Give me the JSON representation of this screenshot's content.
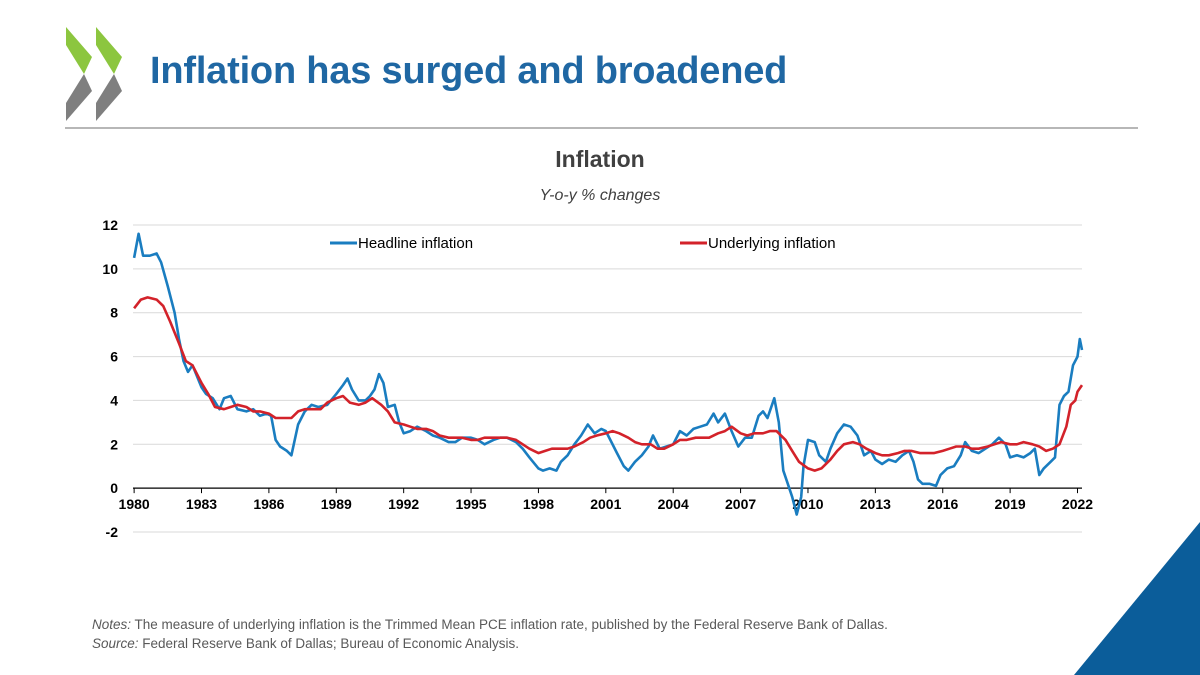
{
  "slide": {
    "title": "Inflation has surged and broadened",
    "brand_colors": {
      "logo_green": "#8cc63f",
      "logo_grey": "#7f7f7f",
      "title_blue": "#1f67a3",
      "corner_blue": "#0b5d9a"
    }
  },
  "notes": {
    "notes_label": "Notes:",
    "notes_text": " The measure of underlying inflation is the Trimmed Mean PCE inflation rate, published by the Federal Reserve Bank of Dallas.",
    "source_label": "Source:",
    "source_text": " Federal Reserve Bank of Dallas; Bureau of Economic Analysis."
  },
  "chart_data": {
    "type": "line",
    "title": "Inflation",
    "subtitle": "Y-o-y % changes",
    "xlabel": "",
    "ylabel": "",
    "xlim": [
      1979.95,
      2022.2
    ],
    "ylim": [
      -2,
      12
    ],
    "y_ticks": [
      -2,
      0,
      2,
      4,
      6,
      8,
      10,
      12
    ],
    "x_ticks": [
      1980,
      1983,
      1986,
      1989,
      1992,
      1995,
      1998,
      2001,
      2004,
      2007,
      2010,
      2013,
      2016,
      2019,
      2022
    ],
    "x_tick_labels": [
      "1980",
      "1983",
      "1986",
      "1989",
      "1992",
      "1995",
      "1998",
      "2001",
      "2004",
      "2007",
      "2010",
      "2013",
      "2016",
      "2019",
      "2022"
    ],
    "grid": "horizontal",
    "legend_position": "top",
    "series": [
      {
        "name": "Headline inflation",
        "color": "#1a7dc0",
        "points": [
          [
            1980.0,
            10.5
          ],
          [
            1980.2,
            11.6
          ],
          [
            1980.4,
            10.6
          ],
          [
            1980.7,
            10.6
          ],
          [
            1981.0,
            10.7
          ],
          [
            1981.2,
            10.3
          ],
          [
            1981.5,
            9.2
          ],
          [
            1981.8,
            8.0
          ],
          [
            1982.0,
            6.8
          ],
          [
            1982.2,
            5.8
          ],
          [
            1982.4,
            5.3
          ],
          [
            1982.6,
            5.6
          ],
          [
            1982.8,
            5.1
          ],
          [
            1983.0,
            4.6
          ],
          [
            1983.2,
            4.3
          ],
          [
            1983.5,
            4.1
          ],
          [
            1983.8,
            3.6
          ],
          [
            1984.0,
            4.1
          ],
          [
            1984.3,
            4.2
          ],
          [
            1984.6,
            3.6
          ],
          [
            1985.0,
            3.5
          ],
          [
            1985.3,
            3.6
          ],
          [
            1985.6,
            3.3
          ],
          [
            1985.9,
            3.4
          ],
          [
            1986.1,
            3.3
          ],
          [
            1986.3,
            2.2
          ],
          [
            1986.5,
            1.9
          ],
          [
            1986.8,
            1.7
          ],
          [
            1987.0,
            1.5
          ],
          [
            1987.3,
            2.9
          ],
          [
            1987.6,
            3.5
          ],
          [
            1987.9,
            3.8
          ],
          [
            1988.2,
            3.7
          ],
          [
            1988.6,
            3.8
          ],
          [
            1989.0,
            4.3
          ],
          [
            1989.3,
            4.7
          ],
          [
            1989.5,
            5.0
          ],
          [
            1989.7,
            4.5
          ],
          [
            1990.0,
            4.0
          ],
          [
            1990.3,
            4.0
          ],
          [
            1990.5,
            4.2
          ],
          [
            1990.7,
            4.5
          ],
          [
            1990.9,
            5.2
          ],
          [
            1991.1,
            4.8
          ],
          [
            1991.3,
            3.7
          ],
          [
            1991.6,
            3.8
          ],
          [
            1991.8,
            3.0
          ],
          [
            1992.0,
            2.5
          ],
          [
            1992.3,
            2.6
          ],
          [
            1992.6,
            2.8
          ],
          [
            1993.0,
            2.6
          ],
          [
            1993.3,
            2.4
          ],
          [
            1993.6,
            2.3
          ],
          [
            1994.0,
            2.1
          ],
          [
            1994.3,
            2.1
          ],
          [
            1994.6,
            2.3
          ],
          [
            1995.0,
            2.3
          ],
          [
            1995.3,
            2.2
          ],
          [
            1995.6,
            2.0
          ],
          [
            1996.0,
            2.2
          ],
          [
            1996.3,
            2.3
          ],
          [
            1996.6,
            2.3
          ],
          [
            1997.0,
            2.1
          ],
          [
            1997.3,
            1.8
          ],
          [
            1997.6,
            1.4
          ],
          [
            1998.0,
            0.9
          ],
          [
            1998.2,
            0.8
          ],
          [
            1998.5,
            0.9
          ],
          [
            1998.8,
            0.8
          ],
          [
            1999.0,
            1.2
          ],
          [
            1999.3,
            1.5
          ],
          [
            1999.6,
            2.0
          ],
          [
            1999.9,
            2.4
          ],
          [
            2000.2,
            2.9
          ],
          [
            2000.5,
            2.5
          ],
          [
            2000.8,
            2.7
          ],
          [
            2001.0,
            2.6
          ],
          [
            2001.2,
            2.2
          ],
          [
            2001.5,
            1.6
          ],
          [
            2001.8,
            1.0
          ],
          [
            2002.0,
            0.8
          ],
          [
            2002.3,
            1.2
          ],
          [
            2002.6,
            1.5
          ],
          [
            2002.9,
            1.9
          ],
          [
            2003.1,
            2.4
          ],
          [
            2003.4,
            1.8
          ],
          [
            2003.7,
            1.9
          ],
          [
            2004.0,
            2.0
          ],
          [
            2004.3,
            2.6
          ],
          [
            2004.6,
            2.4
          ],
          [
            2004.9,
            2.7
          ],
          [
            2005.2,
            2.8
          ],
          [
            2005.5,
            2.9
          ],
          [
            2005.8,
            3.4
          ],
          [
            2006.0,
            3.0
          ],
          [
            2006.3,
            3.4
          ],
          [
            2006.6,
            2.6
          ],
          [
            2006.9,
            1.9
          ],
          [
            2007.2,
            2.3
          ],
          [
            2007.5,
            2.3
          ],
          [
            2007.8,
            3.3
          ],
          [
            2008.0,
            3.5
          ],
          [
            2008.2,
            3.2
          ],
          [
            2008.5,
            4.1
          ],
          [
            2008.7,
            3.0
          ],
          [
            2008.9,
            0.8
          ],
          [
            2009.1,
            0.2
          ],
          [
            2009.3,
            -0.4
          ],
          [
            2009.5,
            -1.2
          ],
          [
            2009.7,
            -0.4
          ],
          [
            2009.8,
            1.0
          ],
          [
            2010.0,
            2.2
          ],
          [
            2010.3,
            2.1
          ],
          [
            2010.5,
            1.5
          ],
          [
            2010.8,
            1.2
          ],
          [
            2011.0,
            1.8
          ],
          [
            2011.3,
            2.5
          ],
          [
            2011.6,
            2.9
          ],
          [
            2011.9,
            2.8
          ],
          [
            2012.2,
            2.4
          ],
          [
            2012.5,
            1.5
          ],
          [
            2012.8,
            1.7
          ],
          [
            2013.0,
            1.3
          ],
          [
            2013.3,
            1.1
          ],
          [
            2013.6,
            1.3
          ],
          [
            2013.9,
            1.2
          ],
          [
            2014.2,
            1.5
          ],
          [
            2014.5,
            1.7
          ],
          [
            2014.7,
            1.2
          ],
          [
            2014.9,
            0.4
          ],
          [
            2015.1,
            0.2
          ],
          [
            2015.4,
            0.2
          ],
          [
            2015.7,
            0.1
          ],
          [
            2015.9,
            0.6
          ],
          [
            2016.2,
            0.9
          ],
          [
            2016.5,
            1.0
          ],
          [
            2016.8,
            1.5
          ],
          [
            2017.0,
            2.1
          ],
          [
            2017.3,
            1.7
          ],
          [
            2017.6,
            1.6
          ],
          [
            2017.9,
            1.8
          ],
          [
            2018.2,
            2.0
          ],
          [
            2018.5,
            2.3
          ],
          [
            2018.8,
            2.0
          ],
          [
            2019.0,
            1.4
          ],
          [
            2019.3,
            1.5
          ],
          [
            2019.6,
            1.4
          ],
          [
            2019.9,
            1.6
          ],
          [
            2020.1,
            1.8
          ],
          [
            2020.3,
            0.6
          ],
          [
            2020.5,
            0.9
          ],
          [
            2020.8,
            1.2
          ],
          [
            2021.0,
            1.4
          ],
          [
            2021.2,
            3.8
          ],
          [
            2021.4,
            4.2
          ],
          [
            2021.6,
            4.4
          ],
          [
            2021.8,
            5.6
          ],
          [
            2022.0,
            6.0
          ],
          [
            2022.1,
            6.8
          ],
          [
            2022.2,
            6.3
          ]
        ]
      },
      {
        "name": "Underlying inflation",
        "color": "#d3222a",
        "points": [
          [
            1980.0,
            8.2
          ],
          [
            1980.3,
            8.6
          ],
          [
            1980.6,
            8.7
          ],
          [
            1981.0,
            8.6
          ],
          [
            1981.3,
            8.3
          ],
          [
            1981.6,
            7.6
          ],
          [
            1982.0,
            6.6
          ],
          [
            1982.3,
            5.8
          ],
          [
            1982.6,
            5.6
          ],
          [
            1983.0,
            4.8
          ],
          [
            1983.3,
            4.3
          ],
          [
            1983.6,
            3.7
          ],
          [
            1984.0,
            3.6
          ],
          [
            1984.3,
            3.7
          ],
          [
            1984.6,
            3.8
          ],
          [
            1985.0,
            3.7
          ],
          [
            1985.3,
            3.5
          ],
          [
            1985.6,
            3.5
          ],
          [
            1986.0,
            3.4
          ],
          [
            1986.3,
            3.2
          ],
          [
            1986.6,
            3.2
          ],
          [
            1987.0,
            3.2
          ],
          [
            1987.3,
            3.5
          ],
          [
            1987.6,
            3.6
          ],
          [
            1988.0,
            3.6
          ],
          [
            1988.3,
            3.6
          ],
          [
            1988.6,
            3.9
          ],
          [
            1989.0,
            4.1
          ],
          [
            1989.3,
            4.2
          ],
          [
            1989.6,
            3.9
          ],
          [
            1990.0,
            3.8
          ],
          [
            1990.3,
            3.9
          ],
          [
            1990.6,
            4.1
          ],
          [
            1991.0,
            3.8
          ],
          [
            1991.3,
            3.5
          ],
          [
            1991.6,
            3.0
          ],
          [
            1992.0,
            2.9
          ],
          [
            1992.3,
            2.8
          ],
          [
            1992.6,
            2.7
          ],
          [
            1993.0,
            2.7
          ],
          [
            1993.3,
            2.6
          ],
          [
            1993.6,
            2.4
          ],
          [
            1994.0,
            2.3
          ],
          [
            1994.3,
            2.3
          ],
          [
            1994.6,
            2.3
          ],
          [
            1995.0,
            2.2
          ],
          [
            1995.3,
            2.2
          ],
          [
            1995.6,
            2.3
          ],
          [
            1996.0,
            2.3
          ],
          [
            1996.3,
            2.3
          ],
          [
            1996.6,
            2.3
          ],
          [
            1997.0,
            2.2
          ],
          [
            1997.3,
            2.0
          ],
          [
            1997.6,
            1.8
          ],
          [
            1998.0,
            1.6
          ],
          [
            1998.3,
            1.7
          ],
          [
            1998.6,
            1.8
          ],
          [
            1999.0,
            1.8
          ],
          [
            1999.3,
            1.8
          ],
          [
            1999.6,
            1.9
          ],
          [
            2000.0,
            2.1
          ],
          [
            2000.3,
            2.3
          ],
          [
            2000.6,
            2.4
          ],
          [
            2001.0,
            2.5
          ],
          [
            2001.3,
            2.6
          ],
          [
            2001.6,
            2.5
          ],
          [
            2002.0,
            2.3
          ],
          [
            2002.3,
            2.1
          ],
          [
            2002.6,
            2.0
          ],
          [
            2003.0,
            2.0
          ],
          [
            2003.3,
            1.8
          ],
          [
            2003.6,
            1.8
          ],
          [
            2004.0,
            2.0
          ],
          [
            2004.3,
            2.2
          ],
          [
            2004.6,
            2.2
          ],
          [
            2005.0,
            2.3
          ],
          [
            2005.3,
            2.3
          ],
          [
            2005.6,
            2.3
          ],
          [
            2006.0,
            2.5
          ],
          [
            2006.3,
            2.6
          ],
          [
            2006.6,
            2.8
          ],
          [
            2007.0,
            2.5
          ],
          [
            2007.3,
            2.4
          ],
          [
            2007.6,
            2.5
          ],
          [
            2008.0,
            2.5
          ],
          [
            2008.3,
            2.6
          ],
          [
            2008.6,
            2.6
          ],
          [
            2009.0,
            2.2
          ],
          [
            2009.3,
            1.7
          ],
          [
            2009.6,
            1.2
          ],
          [
            2010.0,
            0.9
          ],
          [
            2010.3,
            0.8
          ],
          [
            2010.6,
            0.9
          ],
          [
            2011.0,
            1.3
          ],
          [
            2011.3,
            1.7
          ],
          [
            2011.6,
            2.0
          ],
          [
            2012.0,
            2.1
          ],
          [
            2012.3,
            2.0
          ],
          [
            2012.6,
            1.8
          ],
          [
            2013.0,
            1.6
          ],
          [
            2013.3,
            1.5
          ],
          [
            2013.6,
            1.5
          ],
          [
            2014.0,
            1.6
          ],
          [
            2014.3,
            1.7
          ],
          [
            2014.6,
            1.7
          ],
          [
            2015.0,
            1.6
          ],
          [
            2015.3,
            1.6
          ],
          [
            2015.6,
            1.6
          ],
          [
            2016.0,
            1.7
          ],
          [
            2016.3,
            1.8
          ],
          [
            2016.6,
            1.9
          ],
          [
            2017.0,
            1.9
          ],
          [
            2017.3,
            1.8
          ],
          [
            2017.6,
            1.8
          ],
          [
            2018.0,
            1.9
          ],
          [
            2018.3,
            2.0
          ],
          [
            2018.6,
            2.1
          ],
          [
            2019.0,
            2.0
          ],
          [
            2019.3,
            2.0
          ],
          [
            2019.6,
            2.1
          ],
          [
            2020.0,
            2.0
          ],
          [
            2020.3,
            1.9
          ],
          [
            2020.6,
            1.7
          ],
          [
            2020.9,
            1.8
          ],
          [
            2021.2,
            2.0
          ],
          [
            2021.5,
            2.8
          ],
          [
            2021.7,
            3.8
          ],
          [
            2021.9,
            4.0
          ],
          [
            2022.0,
            4.4
          ],
          [
            2022.2,
            4.7
          ]
        ]
      }
    ]
  }
}
